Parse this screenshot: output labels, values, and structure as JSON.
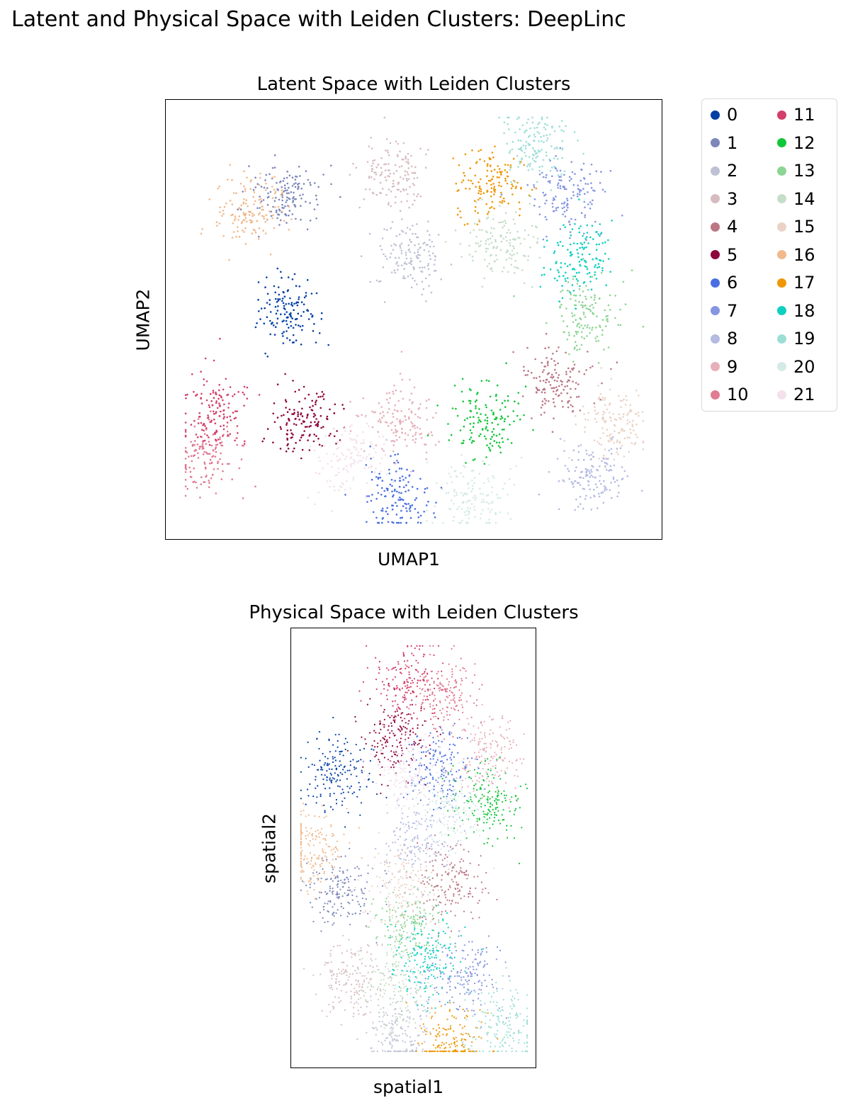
{
  "figure": {
    "suptitle": "Latent and Physical Space with Leiden Clusters: DeepLinc"
  },
  "palette": {
    "0": "#023fa5",
    "1": "#7d87b9",
    "2": "#bec1d4",
    "3": "#d6bcc0",
    "4": "#bb7784",
    "5": "#8e063b",
    "6": "#4a6fe3",
    "7": "#8595e1",
    "8": "#b5bbe3",
    "9": "#e6afb9",
    "10": "#e07b91",
    "11": "#d33f6a",
    "12": "#11c638",
    "13": "#8dd593",
    "14": "#c6dec7",
    "15": "#ead3c6",
    "16": "#f0b98d",
    "17": "#ef9708",
    "18": "#0fcfc0",
    "19": "#9cded6",
    "20": "#d5eae7",
    "21": "#f3e1eb"
  },
  "legend": {
    "entries": [
      "0",
      "1",
      "2",
      "3",
      "4",
      "5",
      "6",
      "7",
      "8",
      "9",
      "10",
      "11",
      "12",
      "13",
      "14",
      "15",
      "16",
      "17",
      "18",
      "19",
      "20",
      "21"
    ],
    "ncol": 2,
    "placement": "outside right of top panel"
  },
  "chart_data": [
    {
      "type": "scatter",
      "title": "Latent Space with Leiden Clusters",
      "xlabel": "UMAP1",
      "ylabel": "UMAP2",
      "ticks": "none",
      "grid": false,
      "clusters": [
        {
          "name": "0",
          "x": 0.25,
          "y": 0.52
        },
        {
          "name": "1",
          "x": 0.25,
          "y": 0.79
        },
        {
          "name": "2",
          "x": 0.49,
          "y": 0.64
        },
        {
          "name": "3",
          "x": 0.46,
          "y": 0.83
        },
        {
          "name": "4",
          "x": 0.78,
          "y": 0.36
        },
        {
          "name": "5",
          "x": 0.28,
          "y": 0.27
        },
        {
          "name": "6",
          "x": 0.47,
          "y": 0.1
        },
        {
          "name": "7",
          "x": 0.81,
          "y": 0.78
        },
        {
          "name": "8",
          "x": 0.86,
          "y": 0.15
        },
        {
          "name": "9",
          "x": 0.47,
          "y": 0.27
        },
        {
          "name": "10",
          "x": 0.08,
          "y": 0.19
        },
        {
          "name": "11",
          "x": 0.1,
          "y": 0.3
        },
        {
          "name": "12",
          "x": 0.65,
          "y": 0.27
        },
        {
          "name": "13",
          "x": 0.84,
          "y": 0.51
        },
        {
          "name": "14",
          "x": 0.68,
          "y": 0.68
        },
        {
          "name": "15",
          "x": 0.9,
          "y": 0.27
        },
        {
          "name": "16",
          "x": 0.17,
          "y": 0.75
        },
        {
          "name": "17",
          "x": 0.65,
          "y": 0.81
        },
        {
          "name": "18",
          "x": 0.83,
          "y": 0.64
        },
        {
          "name": "19",
          "x": 0.74,
          "y": 0.9
        },
        {
          "name": "20",
          "x": 0.62,
          "y": 0.1
        },
        {
          "name": "21",
          "x": 0.37,
          "y": 0.19
        }
      ]
    },
    {
      "type": "scatter",
      "title": "Physical Space with Leiden Clusters",
      "xlabel": "spatial1",
      "ylabel": "spatial2",
      "ticks": "none",
      "grid": false,
      "clusters": [
        {
          "name": "0",
          "x": 0.18,
          "y": 0.67
        },
        {
          "name": "1",
          "x": 0.22,
          "y": 0.4
        },
        {
          "name": "2",
          "x": 0.45,
          "y": 0.08
        },
        {
          "name": "3",
          "x": 0.25,
          "y": 0.2
        },
        {
          "name": "4",
          "x": 0.65,
          "y": 0.42
        },
        {
          "name": "5",
          "x": 0.43,
          "y": 0.75
        },
        {
          "name": "6",
          "x": 0.6,
          "y": 0.67
        },
        {
          "name": "7",
          "x": 0.71,
          "y": 0.21
        },
        {
          "name": "8",
          "x": 0.52,
          "y": 0.53
        },
        {
          "name": "9",
          "x": 0.8,
          "y": 0.71
        },
        {
          "name": "10",
          "x": 0.62,
          "y": 0.85
        },
        {
          "name": "11",
          "x": 0.47,
          "y": 0.88
        },
        {
          "name": "12",
          "x": 0.8,
          "y": 0.6
        },
        {
          "name": "13",
          "x": 0.47,
          "y": 0.33
        },
        {
          "name": "14",
          "x": 0.43,
          "y": 0.2
        },
        {
          "name": "15",
          "x": 0.45,
          "y": 0.41
        },
        {
          "name": "16",
          "x": 0.08,
          "y": 0.49
        },
        {
          "name": "17",
          "x": 0.64,
          "y": 0.05
        },
        {
          "name": "18",
          "x": 0.55,
          "y": 0.25
        },
        {
          "name": "19",
          "x": 0.86,
          "y": 0.1
        },
        {
          "name": "20",
          "x": 0.64,
          "y": 0.59
        },
        {
          "name": "21",
          "x": 0.46,
          "y": 0.68
        }
      ]
    }
  ]
}
